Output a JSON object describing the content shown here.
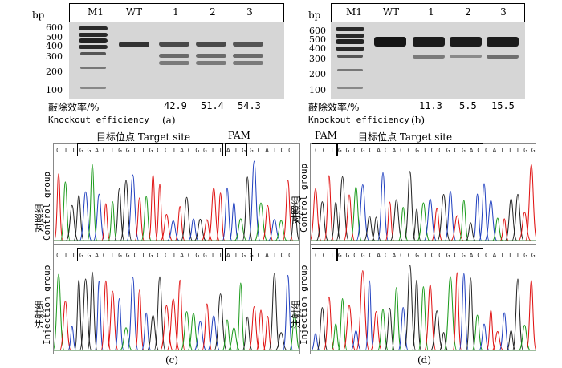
{
  "panel_a": {
    "bp_label": "bp",
    "lanes": [
      "M1",
      "WT",
      "1",
      "2",
      "3"
    ],
    "markers": [
      "600",
      "500",
      "400",
      "300",
      "200",
      "100"
    ],
    "efficiency_label_cn": "敲除效率/%",
    "efficiency_label_en": "Knockout efficiency",
    "efficiencies": [
      "42.9",
      "51.4",
      "54.3"
    ],
    "caption": "(a)"
  },
  "panel_b": {
    "bp_label": "bp",
    "lanes": [
      "M1",
      "WT",
      "1",
      "2",
      "3"
    ],
    "markers": [
      "600",
      "500",
      "400",
      "300",
      "200",
      "100"
    ],
    "efficiency_label_cn": "敲除效率/%",
    "efficiency_label_en": "Knockout efficiency",
    "efficiencies": [
      "11.3",
      "5.5",
      "15.5"
    ],
    "caption": "(b)"
  },
  "panel_c": {
    "target_label": "目标位点 Target site",
    "pam_label": "PAM",
    "seq_control": "C T T G G A C T G G C T G C C T A C G G T T A T G G C A T C C",
    "seq_injection": "C T T G G A C T G G C T G C C T A C G G T T A T G G C A T C C",
    "control_cn": "对照组",
    "control_en": "Control group",
    "injection_cn": "注射组",
    "injection_en": "Injection group",
    "caption": "(c)"
  },
  "panel_d": {
    "target_label": "目标位点 Target site",
    "pam_label": "PAM",
    "seq_control": "C C T G G C G C A C A C C G T C C G C G A C C A T T T G G",
    "seq_injection": "C C T G G C G C A C A C C G T C C G C G A C C A T T T G G",
    "control_cn": "对照组",
    "control_en": "Control group",
    "injection_cn": "注射组",
    "injection_en": "Injection group",
    "caption": "(d)"
  }
}
